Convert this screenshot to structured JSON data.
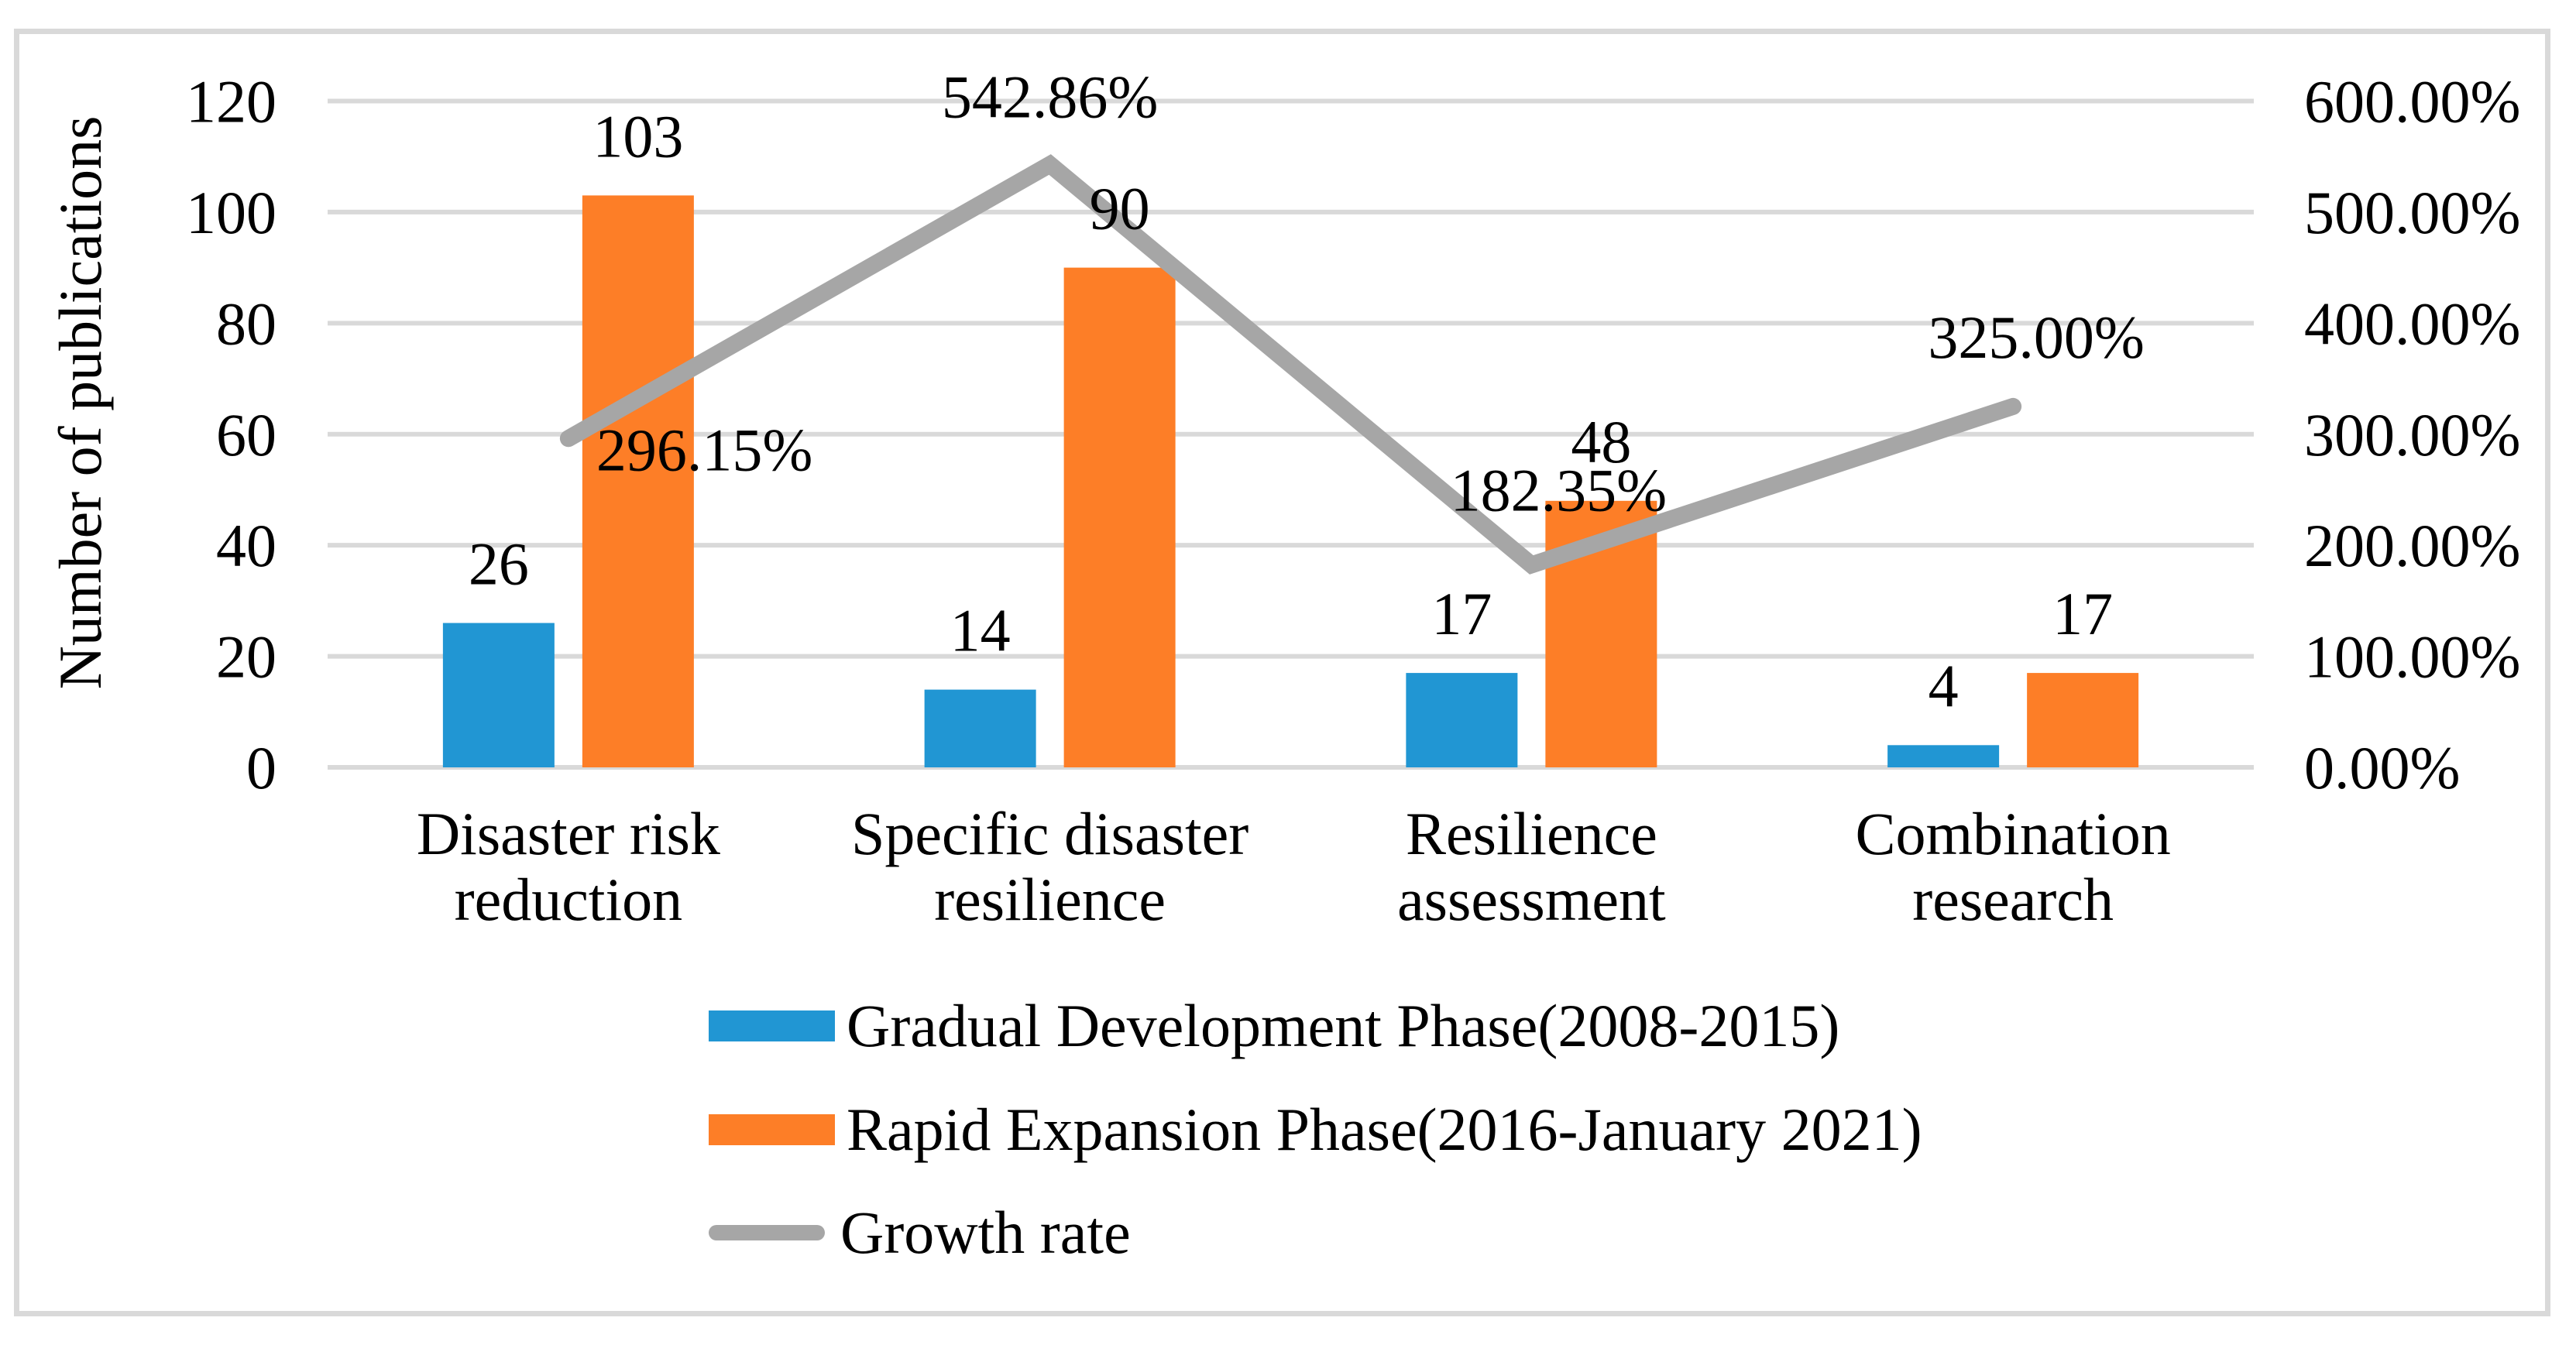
{
  "chart_data": {
    "type": "bar+line combo",
    "title": "",
    "categories": [
      "Disaster risk reduction",
      "Specific disaster resilience",
      "Resilience assessment",
      "Combination research"
    ],
    "category_lines": [
      [
        "Disaster risk",
        "reduction"
      ],
      [
        "Specific disaster",
        "resilience"
      ],
      [
        "Resilience",
        "assessment"
      ],
      [
        "Combination",
        "research"
      ]
    ],
    "series": [
      {
        "name": "Gradual Development Phase(2008-2015)",
        "type": "bar",
        "axis": "left",
        "color": "#2196D3",
        "values": [
          26,
          14,
          17,
          4
        ],
        "value_labels": [
          "26",
          "14",
          "17",
          "4"
        ]
      },
      {
        "name": "Rapid Expansion Phase(2016-January 2021)",
        "type": "bar",
        "axis": "left",
        "color": "#FD7E27",
        "values": [
          103,
          90,
          48,
          17
        ],
        "value_labels": [
          "103",
          "90",
          "48",
          "17"
        ]
      },
      {
        "name": "Growth rate",
        "type": "line",
        "axis": "right",
        "color": "#A6A6A6",
        "values": [
          296.15,
          542.86,
          182.35,
          325.0
        ],
        "value_labels": [
          {
            "text": "296.15%",
            "placement": "right",
            "dx": 36,
            "dy": 41
          },
          {
            "text": "542.86%",
            "placement": "above",
            "dx": 0,
            "dy": -61
          },
          {
            "text": "182.35%",
            "placement": "above",
            "dx": 35,
            "dy": -70
          },
          {
            "text": "325.00%",
            "placement": "above",
            "dx": 30,
            "dy": -63
          }
        ]
      }
    ],
    "left_axis": {
      "title": "Number of publications",
      "min": 0,
      "max": 120,
      "step": 20,
      "tick_labels": [
        "0",
        "20",
        "40",
        "60",
        "80",
        "100",
        "120"
      ]
    },
    "right_axis": {
      "min": 0,
      "max": 600,
      "tick_labels": [
        "0.00%",
        "100.00%",
        "200.00%",
        "300.00%",
        "400.00%",
        "500.00%",
        "600.00%"
      ]
    },
    "grid": {
      "show": true,
      "color": "#D9D9D9"
    },
    "frame_color": "#D9D9D9",
    "background": "#FFFFFF",
    "legend": {
      "position": "bottom-center-left",
      "items": [
        "Gradual Development Phase(2008-2015)",
        "Rapid Expansion Phase(2016-January 2021)",
        "Growth rate"
      ]
    }
  }
}
